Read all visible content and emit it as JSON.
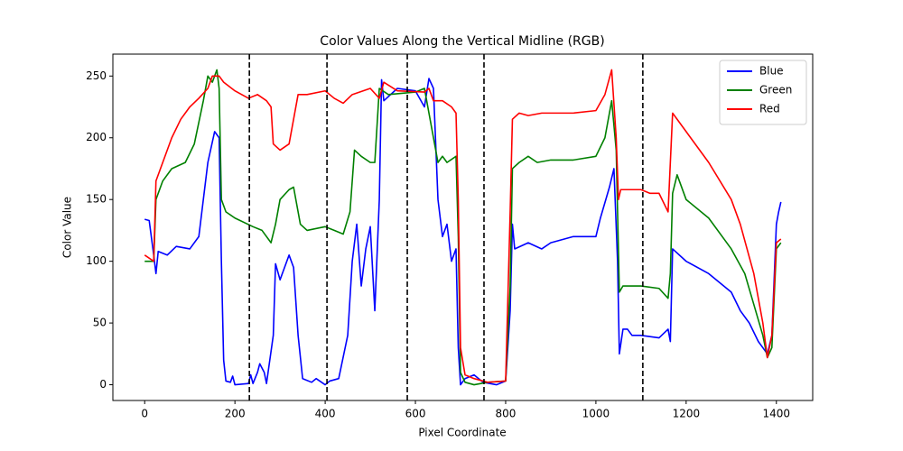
{
  "chart_data": {
    "type": "line",
    "title": "Color Values Along the Vertical Midline (RGB)",
    "x_label": "Pixel Coordinate",
    "y_label": "Color Value",
    "xlim": [
      -70.5,
      1480.5
    ],
    "ylim": [
      -12.75,
      267.75
    ],
    "xticks": [
      0,
      200,
      400,
      600,
      800,
      1000,
      1200,
      1400
    ],
    "yticks": [
      0,
      50,
      100,
      150,
      200,
      250
    ],
    "vlines": [
      232,
      404,
      582,
      752,
      1104
    ],
    "vline_color": "#000000",
    "legend": "upper right",
    "series": [
      {
        "name": "Blue",
        "color": "#0000ff",
        "x": [
          0,
          10,
          20,
          25,
          30,
          50,
          70,
          100,
          120,
          140,
          155,
          165,
          170,
          175,
          180,
          190,
          195,
          200,
          230,
          235,
          240,
          250,
          255,
          265,
          270,
          285,
          290,
          300,
          310,
          320,
          330,
          340,
          350,
          370,
          380,
          400,
          410,
          430,
          450,
          460,
          470,
          480,
          490,
          500,
          510,
          520,
          525,
          530,
          560,
          600,
          620,
          630,
          640,
          650,
          660,
          670,
          680,
          690,
          695,
          700,
          710,
          730,
          750,
          780,
          800,
          810,
          815,
          820,
          850,
          880,
          900,
          950,
          1000,
          1010,
          1030,
          1040,
          1048,
          1052,
          1060,
          1070,
          1080,
          1100,
          1140,
          1160,
          1165,
          1170,
          1200,
          1250,
          1300,
          1320,
          1340,
          1360,
          1380,
          1390,
          1400,
          1405,
          1410
        ],
        "values": [
          134,
          133,
          105,
          90,
          108,
          105,
          112,
          110,
          120,
          180,
          205,
          200,
          100,
          20,
          3,
          2,
          7,
          0,
          1,
          8,
          1,
          10,
          17,
          10,
          1,
          40,
          98,
          85,
          95,
          105,
          95,
          40,
          5,
          2,
          5,
          0,
          3,
          5,
          40,
          100,
          130,
          80,
          110,
          128,
          60,
          150,
          247,
          230,
          240,
          238,
          225,
          248,
          240,
          150,
          120,
          130,
          100,
          110,
          30,
          0,
          5,
          8,
          2,
          0,
          3,
          60,
          130,
          110,
          115,
          110,
          115,
          120,
          120,
          135,
          160,
          175,
          100,
          25,
          45,
          45,
          40,
          40,
          38,
          45,
          35,
          110,
          100,
          90,
          75,
          60,
          50,
          35,
          25,
          40,
          130,
          140,
          148
        ]
      },
      {
        "name": "Green",
        "color": "#008000",
        "x": [
          0,
          20,
          25,
          40,
          60,
          90,
          110,
          130,
          140,
          150,
          160,
          165,
          170,
          180,
          200,
          240,
          260,
          280,
          290,
          300,
          320,
          330,
          345,
          360,
          400,
          420,
          440,
          455,
          465,
          480,
          500,
          510,
          520,
          540,
          600,
          620,
          640,
          650,
          660,
          670,
          690,
          695,
          700,
          710,
          730,
          760,
          800,
          810,
          815,
          830,
          850,
          870,
          900,
          950,
          1000,
          1020,
          1035,
          1045,
          1052,
          1060,
          1100,
          1140,
          1160,
          1165,
          1170,
          1180,
          1200,
          1250,
          1300,
          1330,
          1350,
          1370,
          1380,
          1390,
          1400,
          1410
        ],
        "values": [
          100,
          100,
          150,
          165,
          175,
          180,
          195,
          230,
          250,
          245,
          255,
          240,
          150,
          140,
          135,
          128,
          125,
          115,
          130,
          150,
          158,
          160,
          130,
          125,
          128,
          125,
          122,
          140,
          190,
          185,
          180,
          180,
          240,
          235,
          237,
          240,
          200,
          180,
          185,
          180,
          185,
          120,
          10,
          2,
          0,
          2,
          3,
          80,
          175,
          180,
          185,
          180,
          182,
          182,
          185,
          200,
          230,
          190,
          75,
          80,
          80,
          78,
          70,
          90,
          155,
          170,
          150,
          135,
          110,
          90,
          65,
          40,
          22,
          30,
          110,
          115
        ]
      },
      {
        "name": "Red",
        "color": "#ff0000",
        "x": [
          0,
          20,
          25,
          40,
          60,
          80,
          100,
          120,
          140,
          150,
          165,
          175,
          200,
          230,
          250,
          270,
          280,
          285,
          300,
          320,
          340,
          360,
          400,
          420,
          440,
          460,
          500,
          520,
          530,
          560,
          620,
          630,
          640,
          660,
          680,
          690,
          695,
          700,
          710,
          730,
          760,
          800,
          810,
          815,
          830,
          850,
          880,
          950,
          1000,
          1020,
          1035,
          1045,
          1050,
          1055,
          1100,
          1120,
          1140,
          1160,
          1170,
          1200,
          1250,
          1300,
          1320,
          1350,
          1370,
          1380,
          1390,
          1400,
          1410
        ],
        "values": [
          105,
          100,
          165,
          180,
          200,
          215,
          225,
          232,
          240,
          250,
          250,
          245,
          238,
          232,
          235,
          230,
          225,
          195,
          190,
          195,
          235,
          235,
          238,
          232,
          228,
          235,
          240,
          232,
          245,
          238,
          237,
          240,
          230,
          230,
          225,
          220,
          150,
          30,
          8,
          5,
          2,
          3,
          140,
          215,
          220,
          218,
          220,
          220,
          222,
          235,
          255,
          200,
          150,
          158,
          158,
          155,
          155,
          140,
          220,
          205,
          180,
          150,
          130,
          90,
          50,
          22,
          40,
          115,
          118
        ]
      }
    ]
  }
}
